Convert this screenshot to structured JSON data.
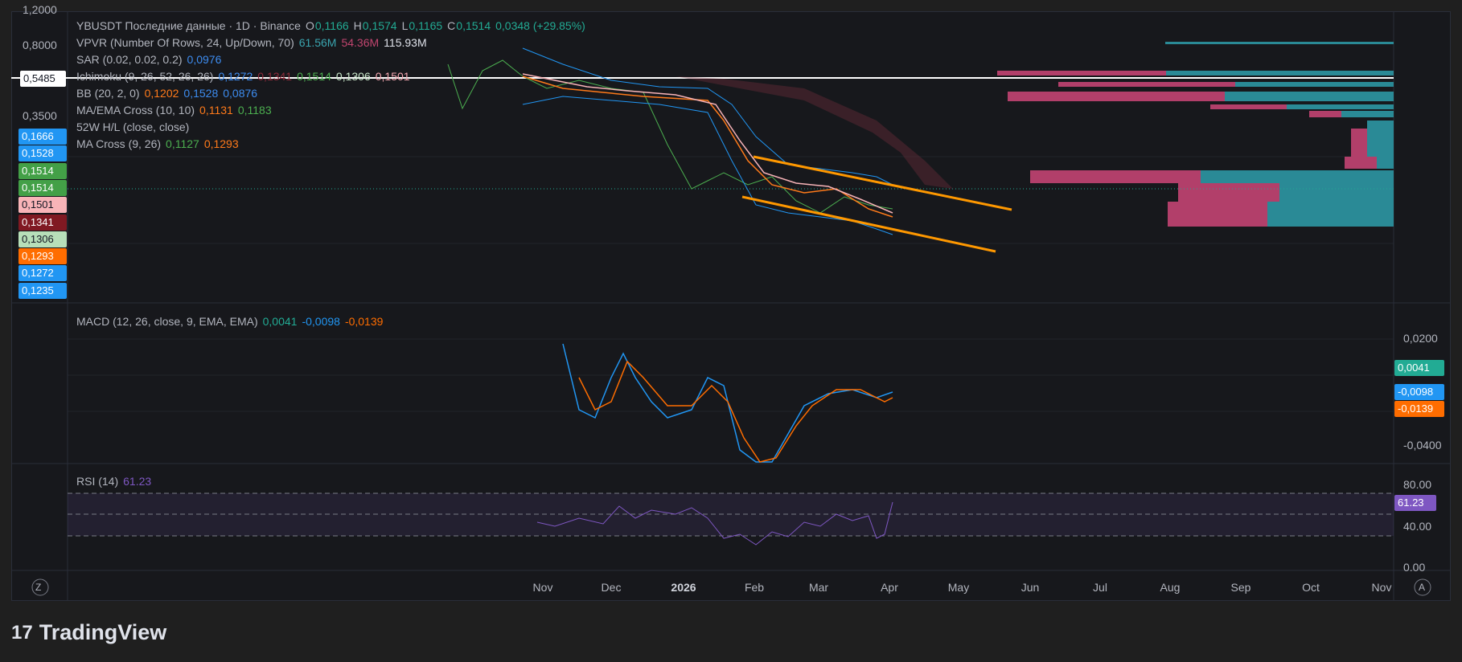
{
  "legend": [
    {
      "name": "YBUSDT Последние данные · 1D · Binance",
      "values": [
        {
          "label": "O",
          "text": "0,1166",
          "color": "#22ab94"
        },
        {
          "label": "H",
          "text": "0,1574",
          "color": "#22ab94"
        },
        {
          "label": "L",
          "text": "0,1165",
          "color": "#22ab94"
        },
        {
          "label": "C",
          "text": "0,1514",
          "color": "#22ab94"
        },
        {
          "text": "0,0348 (+29.85%)",
          "color": "#22ab94"
        }
      ]
    },
    {
      "name": "VPVR (Number Of Rows, 24, Up/Down, 70)",
      "values": [
        {
          "text": "61.56M",
          "color": "#3aa5b0"
        },
        {
          "text": "54.36M",
          "color": "#c2456f"
        },
        {
          "text": "115.93M",
          "color": "#e0e3eb"
        }
      ]
    },
    {
      "name": "SAR (0.02, 0.02, 0.2)",
      "values": [
        {
          "text": "0,0976",
          "color": "#3d8cf0"
        }
      ]
    },
    {
      "name": "Ichimoku (9, 26, 52, 26, 26)",
      "values": [
        {
          "text": "0,1272",
          "color": "#3d8cf0"
        },
        {
          "text": "0,1341",
          "color": "#8e2a3a"
        },
        {
          "text": "0,1514",
          "color": "#4caf50"
        },
        {
          "text": "0,1306",
          "color": "#c8e6c9"
        },
        {
          "text": "0,1501",
          "color": "#f4a6b0"
        }
      ]
    },
    {
      "name": "BB (20, 2, 0)",
      "values": [
        {
          "text": "0,1202",
          "color": "#ff7a1a"
        },
        {
          "text": "0,1528",
          "color": "#3d8cf0"
        },
        {
          "text": "0,0876",
          "color": "#3d8cf0"
        }
      ]
    },
    {
      "name": "MA/EMA Cross (10, 10)",
      "values": [
        {
          "text": "0,1131",
          "color": "#ff7a1a"
        },
        {
          "text": "0,1183",
          "color": "#4caf50"
        }
      ]
    },
    {
      "name": "52W H/L (close, close)",
      "values": []
    },
    {
      "name": "MA Cross (9, 26)",
      "values": [
        {
          "text": "0,1127",
          "color": "#4caf50"
        },
        {
          "text": "0,1293",
          "color": "#ff7a1a"
        }
      ]
    }
  ],
  "price_scale": {
    "labels": [
      "1,2000",
      "0,8000",
      "0,3500"
    ],
    "current": "0,5485",
    "badges": [
      {
        "text": "0,1666",
        "color": "#2196f3",
        "text_color": "#ffffff"
      },
      {
        "text": "0,1528",
        "color": "#2196f3",
        "text_color": "#ffffff"
      },
      {
        "text": "0,1514",
        "color": "#43a047",
        "text_color": "#ffffff"
      },
      {
        "text": "0,1514",
        "color": "#43a047",
        "text_color": "#ffffff"
      },
      {
        "text": "0,1501",
        "color": "#f8b4b8",
        "text_color": "#131722"
      },
      {
        "text": "0,1341",
        "color": "#801922",
        "text_color": "#ffffff"
      },
      {
        "text": "0,1306",
        "color": "#b7dfb9",
        "text_color": "#131722"
      },
      {
        "text": "0,1293",
        "color": "#ff6d00",
        "text_color": "#ffffff"
      },
      {
        "text": "0,1272",
        "color": "#2196f3",
        "text_color": "#ffffff"
      },
      {
        "text": "0,1235",
        "color": "#2196f3",
        "text_color": "#ffffff"
      }
    ]
  },
  "macd": {
    "name": "MACD (12, 26, close, 9, EMA, EMA)",
    "values": [
      {
        "text": "0,0041",
        "color": "#22ab94"
      },
      {
        "text": "-0,0098",
        "color": "#2196f3"
      },
      {
        "text": "-0,0139",
        "color": "#ff6d00"
      }
    ],
    "axis_labels": [
      "0,0200",
      "-0,0400"
    ]
  },
  "rsi": {
    "name": "RSI (14)",
    "value": {
      "text": "61.23",
      "color": "#7e57c2"
    },
    "axis_labels": [
      "80.00",
      "40.00",
      "0.00"
    ]
  },
  "time_axis": {
    "labels": [
      "Nov",
      "Dec",
      "2026",
      "Feb",
      "Mar",
      "Apr",
      "May",
      "Jun",
      "Jul",
      "Aug",
      "Sep",
      "Oct",
      "Nov"
    ],
    "bold": "2026"
  },
  "buttons": {
    "left": "Z",
    "right": "A"
  },
  "logo": "TradingView"
}
